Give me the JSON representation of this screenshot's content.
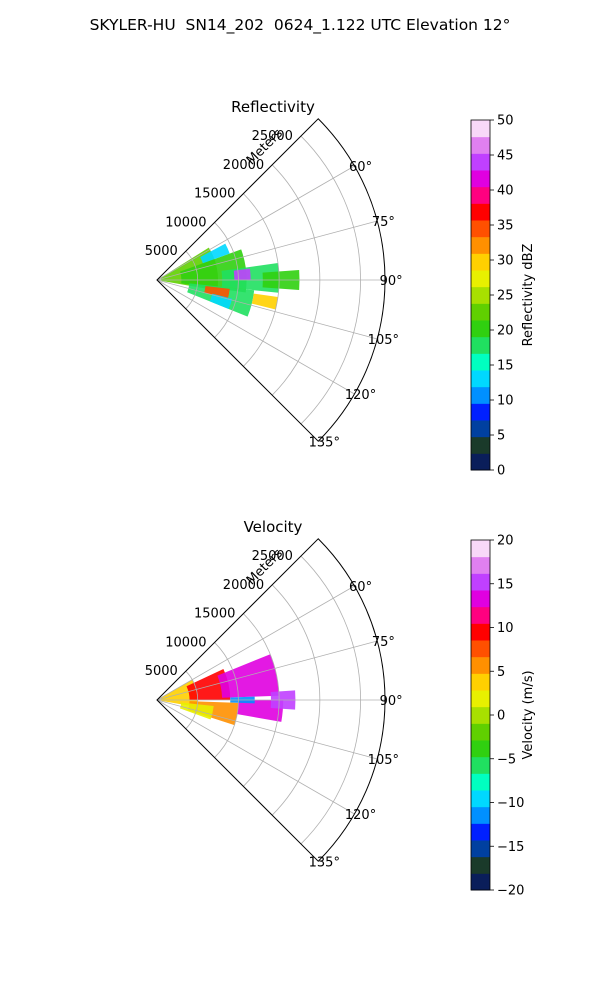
{
  "figure": {
    "title": "SKYLER-HU  SN14_202  0624_1.122 UTC Elevation 12°"
  },
  "chart_data": [
    {
      "type": "polar-sector",
      "title": "Reflectivity",
      "radial_label": "Meters",
      "radial_ticks": [
        "5000",
        "10000",
        "15000",
        "20000",
        "25000"
      ],
      "radial_values": [
        5000,
        10000,
        15000,
        20000,
        25000
      ],
      "r_max": 28000,
      "azimuth_range_deg": [
        45,
        135
      ],
      "azimuth_ticks": [
        "60°",
        "75°",
        "90°",
        "105°",
        "120°",
        "135°"
      ],
      "azimuth_values": [
        60,
        75,
        90,
        105,
        120,
        135
      ],
      "grid": true,
      "colorbar": {
        "label": "Reflectivity dBZ",
        "min": 0,
        "max": 50,
        "ticks": [
          "0",
          "5",
          "10",
          "15",
          "20",
          "25",
          "30",
          "35",
          "40",
          "45",
          "50"
        ],
        "tick_values": [
          0,
          5,
          10,
          15,
          20,
          25,
          30,
          35,
          40,
          45,
          50
        ],
        "colors": [
          "#0a1e5a",
          "#1a3a2a",
          "#0040a0",
          "#0020ff",
          "#0090ff",
          "#00d8ff",
          "#00ffc0",
          "#20e060",
          "#30d010",
          "#60d000",
          "#a8e000",
          "#e8f000",
          "#ffd000",
          "#ff9000",
          "#ff5000",
          "#ff0000",
          "#ff0080",
          "#e000e0",
          "#c040ff",
          "#e080f0",
          "#f8d8f8"
        ]
      },
      "echo_regions": [
        {
          "az": [
            58,
            100
          ],
          "r": [
            500,
            7500
          ],
          "value": 22
        },
        {
          "az": [
            70,
            98
          ],
          "r": [
            3000,
            11000
          ],
          "value": 20
        },
        {
          "az": [
            96,
            112
          ],
          "r": [
            4000,
            12000
          ],
          "value": 18
        },
        {
          "az": [
            82,
            96
          ],
          "r": [
            8000,
            15000
          ],
          "value": 18
        },
        {
          "az": [
            86,
            94
          ],
          "r": [
            13000,
            17500
          ],
          "value": 21
        },
        {
          "az": [
            83,
            90
          ],
          "r": [
            9500,
            11500
          ],
          "value": 45
        },
        {
          "az": [
            97,
            105
          ],
          "r": [
            6000,
            9000
          ],
          "value": 35
        },
        {
          "az": [
            98,
            104
          ],
          "r": [
            12000,
            15000
          ],
          "value": 30
        },
        {
          "az": [
            62,
            70
          ],
          "r": [
            6000,
            9500
          ],
          "value": 12
        },
        {
          "az": [
            104,
            112
          ],
          "r": [
            7000,
            9500
          ],
          "value": 12
        }
      ]
    },
    {
      "type": "polar-sector",
      "title": "Velocity",
      "radial_label": "Meters",
      "radial_ticks": [
        "5000",
        "10000",
        "15000",
        "20000",
        "25000"
      ],
      "radial_values": [
        5000,
        10000,
        15000,
        20000,
        25000
      ],
      "r_max": 28000,
      "azimuth_range_deg": [
        45,
        135
      ],
      "azimuth_ticks": [
        "60°",
        "75°",
        "90°",
        "105°",
        "120°",
        "135°"
      ],
      "azimuth_values": [
        60,
        75,
        90,
        105,
        120,
        135
      ],
      "grid": true,
      "colorbar": {
        "label": "Velocity (m/s)",
        "min": -20,
        "max": 20,
        "ticks": [
          "−20",
          "−15",
          "−10",
          "−5",
          "0",
          "5",
          "10",
          "15",
          "20"
        ],
        "tick_values": [
          -20,
          -15,
          -10,
          -5,
          0,
          5,
          10,
          15,
          20
        ],
        "colors": [
          "#0a1e5a",
          "#1a3a2a",
          "#0040a0",
          "#0020ff",
          "#0090ff",
          "#00d8ff",
          "#00ffc0",
          "#20e060",
          "#30d010",
          "#60d000",
          "#a8e000",
          "#e8f000",
          "#ffd000",
          "#ff9000",
          "#ff5000",
          "#ff0000",
          "#ff0080",
          "#e000e0",
          "#c040ff",
          "#e080f0",
          "#f8d8f8"
        ]
      },
      "echo_regions": [
        {
          "az": [
            60,
            100
          ],
          "r": [
            500,
            5000
          ],
          "value": 3
        },
        {
          "az": [
            65,
            90
          ],
          "r": [
            4000,
            9000
          ],
          "value": 9
        },
        {
          "az": [
            68,
            88
          ],
          "r": [
            8000,
            15000
          ],
          "value": 14
        },
        {
          "az": [
            92,
            108
          ],
          "r": [
            4000,
            10000
          ],
          "value": 5
        },
        {
          "az": [
            96,
            110
          ],
          "r": [
            3000,
            7000
          ],
          "value": 2
        },
        {
          "az": [
            90,
            100
          ],
          "r": [
            10000,
            15500
          ],
          "value": 13
        },
        {
          "az": [
            86,
            94
          ],
          "r": [
            14000,
            17000
          ],
          "value": 15
        },
        {
          "az": [
            88,
            92
          ],
          "r": [
            9000,
            12000
          ],
          "value": -11
        }
      ]
    }
  ]
}
